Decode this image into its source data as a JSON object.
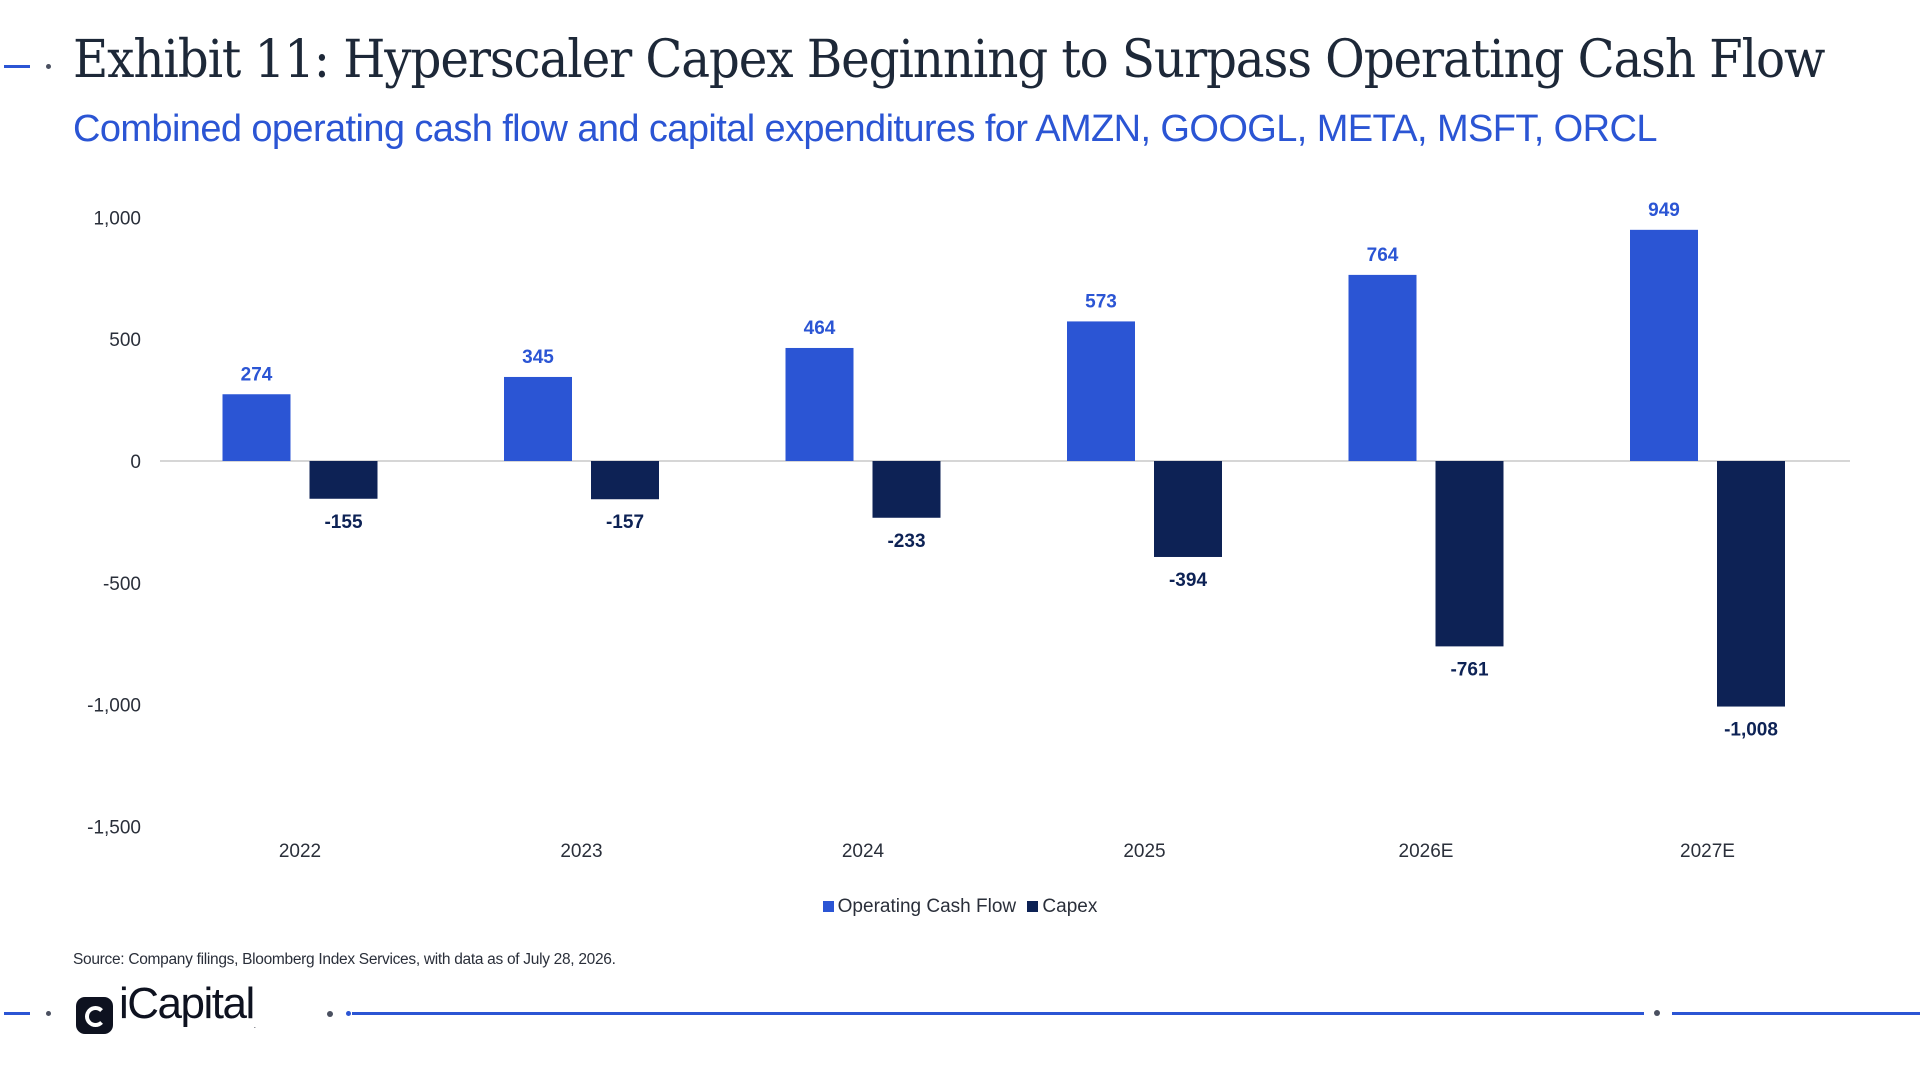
{
  "title": "Exhibit 11: Hyperscaler Capex Beginning to Surpass Operating Cash Flow",
  "subtitle": "Combined operating cash flow and capital expenditures for AMZN, GOOGL, META, MSFT, ORCL",
  "source": "Source: Company filings, Bloomberg Index Services, with data as of July 28, 2026.",
  "brand": {
    "logo_text": "iCapital",
    "logo_mark": ".",
    "accent": "#2b55d4",
    "dark": "#0d2255"
  },
  "chart_data": {
    "type": "bar",
    "categories": [
      "2022",
      "2023",
      "2024",
      "2025",
      "2026E",
      "2027E"
    ],
    "series": [
      {
        "name": "Operating Cash Flow",
        "values": [
          274,
          345,
          464,
          573,
          764,
          949
        ],
        "color": "#2b55d4"
      },
      {
        "name": "Capex",
        "values": [
          -155,
          -157,
          -233,
          -394,
          -761,
          -1008
        ],
        "color": "#0d2255"
      }
    ],
    "data_labels": [
      [
        "274",
        "345",
        "464",
        "573",
        "764",
        "949"
      ],
      [
        "-155",
        "-157",
        "-233",
        "-394",
        "-761",
        "-1,008"
      ]
    ],
    "yticks": [
      1000,
      500,
      0,
      -500,
      -1000,
      -1500
    ],
    "ytick_labels": [
      "1,000",
      "500",
      "0",
      "-500",
      "-1,000",
      "-1,500"
    ],
    "ylim": [
      -1500,
      1000
    ],
    "grid": false,
    "legend_position": "bottom-center"
  }
}
